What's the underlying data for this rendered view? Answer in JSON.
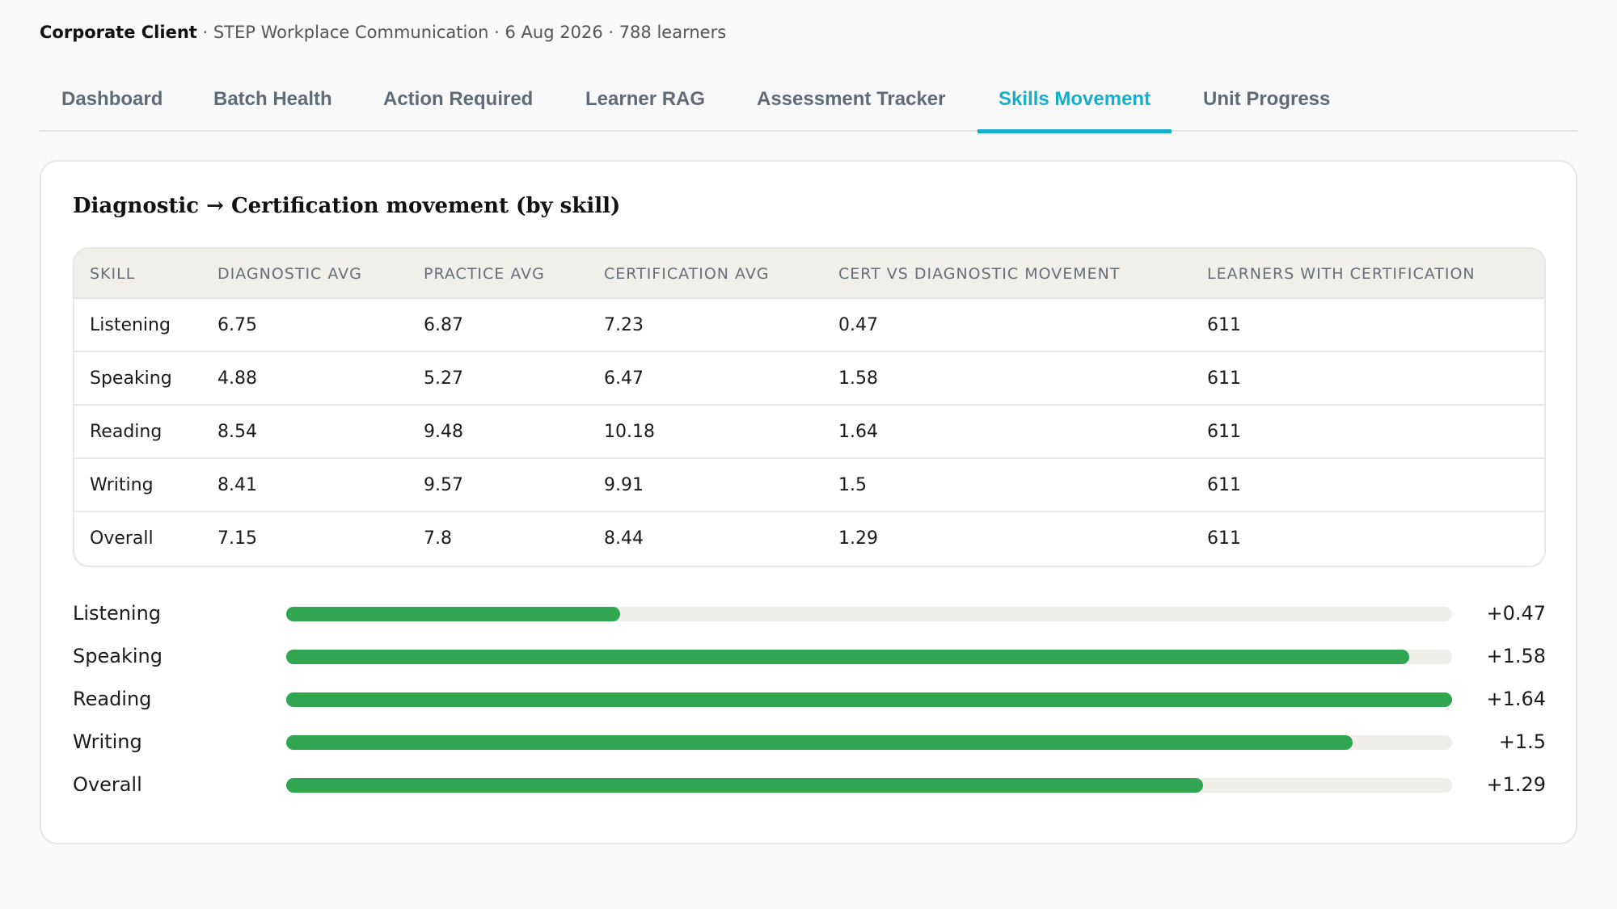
{
  "header": {
    "client": "Corporate Client",
    "details": " · STEP Workplace Communication · 6 Aug 2026 · 788 learners"
  },
  "tabs": [
    {
      "label": "Dashboard",
      "active": false
    },
    {
      "label": "Batch Health",
      "active": false
    },
    {
      "label": "Action Required",
      "active": false
    },
    {
      "label": "Learner RAG",
      "active": false
    },
    {
      "label": "Assessment Tracker",
      "active": false
    },
    {
      "label": "Skills Movement",
      "active": true
    },
    {
      "label": "Unit Progress",
      "active": false
    }
  ],
  "card": {
    "title": "Diagnostic → Certification movement (by skill)"
  },
  "table": {
    "columns": [
      "SKILL",
      "DIAGNOSTIC AVG",
      "PRACTICE AVG",
      "CERTIFICATION AVG",
      "CERT VS DIAGNOSTIC MOVEMENT",
      "LEARNERS WITH CERTIFICATION"
    ],
    "rows": [
      [
        "Listening",
        "6.75",
        "6.87",
        "7.23",
        "0.47",
        "611"
      ],
      [
        "Speaking",
        "4.88",
        "5.27",
        "6.47",
        "1.58",
        "611"
      ],
      [
        "Reading",
        "8.54",
        "9.48",
        "10.18",
        "1.64",
        "611"
      ],
      [
        "Writing",
        "8.41",
        "9.57",
        "9.91",
        "1.5",
        "611"
      ],
      [
        "Overall",
        "7.15",
        "7.8",
        "8.44",
        "1.29",
        "611"
      ]
    ]
  },
  "movement_bars": {
    "max": 1.64,
    "fill_color": "#2fa64f",
    "items": [
      {
        "label": "Listening",
        "value": 0.47,
        "display": "+0.47"
      },
      {
        "label": "Speaking",
        "value": 1.58,
        "display": "+1.58"
      },
      {
        "label": "Reading",
        "value": 1.64,
        "display": "+1.64"
      },
      {
        "label": "Writing",
        "value": 1.5,
        "display": "+1.5"
      },
      {
        "label": "Overall",
        "value": 1.29,
        "display": "+1.29"
      }
    ]
  }
}
